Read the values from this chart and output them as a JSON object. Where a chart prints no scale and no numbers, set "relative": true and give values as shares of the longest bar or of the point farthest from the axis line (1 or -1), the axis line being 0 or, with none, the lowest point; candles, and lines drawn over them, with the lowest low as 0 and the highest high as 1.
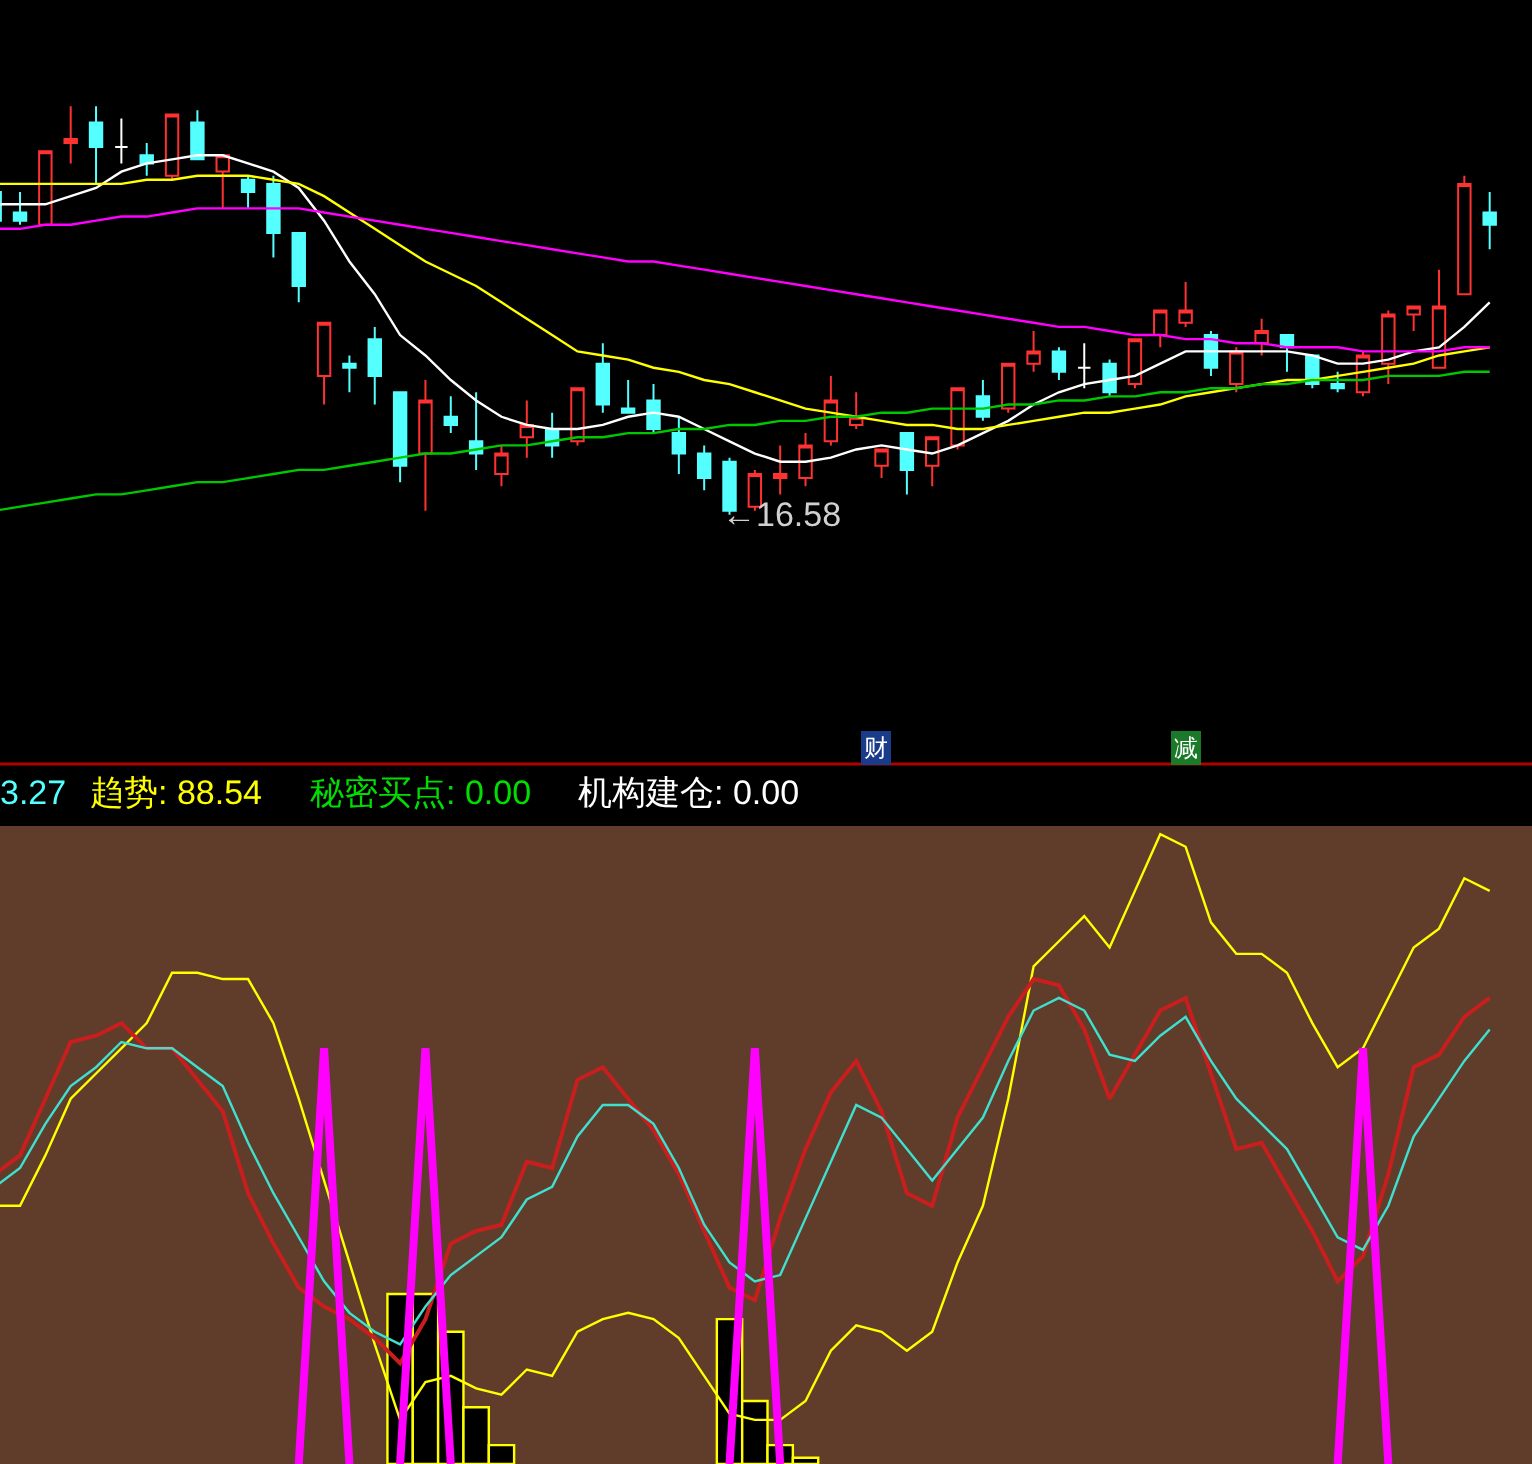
{
  "chart_data": [
    {
      "type": "candlestick",
      "relative": true,
      "tick_labels": false,
      "categories": [
        null,
        null,
        null,
        null,
        null,
        null,
        null,
        null,
        null,
        null,
        null,
        null,
        null,
        null,
        null,
        null,
        null,
        null,
        null,
        null,
        null,
        null,
        null,
        null,
        null,
        null,
        null,
        null,
        null,
        null,
        null,
        null,
        null,
        null,
        null,
        null,
        null,
        null,
        null,
        null,
        null,
        null,
        null,
        null,
        null,
        null,
        null,
        null,
        null,
        null,
        null,
        null,
        null,
        null,
        null,
        null,
        null,
        null,
        null,
        null
      ],
      "ohlc": [
        [
          0.79,
          0.8,
          0.71,
          0.72
        ],
        [
          0.74,
          0.79,
          0.71,
          0.72
        ],
        [
          0.71,
          0.89,
          0.71,
          0.89
        ],
        [
          0.91,
          1.0,
          0.86,
          0.92
        ],
        [
          0.96,
          1.0,
          0.81,
          0.9
        ],
        [
          0.9,
          0.97,
          0.86,
          0.9
        ],
        [
          0.88,
          0.91,
          0.83,
          0.86
        ],
        [
          0.83,
          0.98,
          0.82,
          0.98
        ],
        [
          0.96,
          0.99,
          0.87,
          0.87
        ],
        [
          0.84,
          0.88,
          0.75,
          0.88
        ],
        [
          0.82,
          0.83,
          0.75,
          0.79
        ],
        [
          0.81,
          0.83,
          0.63,
          0.69
        ],
        [
          0.69,
          0.69,
          0.52,
          0.56
        ],
        [
          0.34,
          0.47,
          0.27,
          0.47
        ],
        [
          0.37,
          0.39,
          0.3,
          0.36
        ],
        [
          0.43,
          0.46,
          0.27,
          0.34
        ],
        [
          0.3,
          0.3,
          0.08,
          0.12
        ],
        [
          0.15,
          0.33,
          0.01,
          0.28
        ],
        [
          0.24,
          0.29,
          0.2,
          0.22
        ],
        [
          0.18,
          0.3,
          0.11,
          0.15
        ],
        [
          0.1,
          0.17,
          0.07,
          0.15
        ],
        [
          0.19,
          0.28,
          0.14,
          0.22
        ],
        [
          0.21,
          0.25,
          0.14,
          0.17
        ],
        [
          0.18,
          0.31,
          0.17,
          0.31
        ],
        [
          0.37,
          0.42,
          0.25,
          0.27
        ],
        [
          0.26,
          0.33,
          0.25,
          0.25
        ],
        [
          0.28,
          0.32,
          0.2,
          0.21
        ],
        [
          0.2,
          0.24,
          0.1,
          0.15
        ],
        [
          0.15,
          0.17,
          0.06,
          0.09
        ],
        [
          0.13,
          0.14,
          0,
          0.01
        ],
        [
          0.02,
          0.11,
          0.01,
          0.1
        ],
        [
          0.09,
          0.17,
          0.05,
          0.1
        ],
        [
          0.09,
          0.2,
          0.07,
          0.17
        ],
        [
          0.18,
          0.34,
          0.17,
          0.28
        ],
        [
          0.22,
          0.3,
          0.21,
          0.24
        ],
        [
          0.12,
          0.16,
          0.09,
          0.16
        ],
        [
          0.2,
          0.2,
          0.05,
          0.11
        ],
        [
          0.12,
          0.19,
          0.07,
          0.19
        ],
        [
          0.17,
          0.31,
          0.16,
          0.31
        ],
        [
          0.29,
          0.33,
          0.23,
          0.24
        ],
        [
          0.26,
          0.37,
          0.25,
          0.37
        ],
        [
          0.37,
          0.45,
          0.35,
          0.4
        ],
        [
          0.4,
          0.41,
          0.33,
          0.35
        ],
        [
          0.36,
          0.42,
          0.31,
          0.36
        ],
        [
          0.37,
          0.38,
          0.29,
          0.3
        ],
        [
          0.32,
          0.43,
          0.31,
          0.43
        ],
        [
          0.44,
          0.5,
          0.41,
          0.5
        ],
        [
          0.47,
          0.57,
          0.46,
          0.5
        ],
        [
          0.44,
          0.45,
          0.34,
          0.36
        ],
        [
          0.32,
          0.41,
          0.3,
          0.4
        ],
        [
          0.42,
          0.48,
          0.39,
          0.45
        ],
        [
          0.44,
          0.44,
          0.35,
          0.41
        ],
        [
          0.39,
          0.39,
          0.31,
          0.32
        ],
        [
          0.32,
          0.35,
          0.3,
          0.31
        ],
        [
          0.3,
          0.4,
          0.29,
          0.39
        ],
        [
          0.37,
          0.5,
          0.32,
          0.49
        ],
        [
          0.49,
          0.51,
          0.45,
          0.51
        ],
        [
          0.36,
          0.6,
          0.36,
          0.51
        ],
        [
          0.54,
          0.83,
          0.54,
          0.81
        ],
        [
          0.74,
          0.79,
          0.65,
          0.71
        ]
      ],
      "colors": [
        "#54ffff",
        "#54ffff",
        "#ff3232",
        "#ff3232",
        "#54ffff",
        "#ffffff",
        "#54ffff",
        "#ff3232",
        "#54ffff",
        "#ff3232",
        "#54ffff",
        "#54ffff",
        "#54ffff",
        "#ff3232",
        "#54ffff",
        "#54ffff",
        "#54ffff",
        "#ff3232",
        "#54ffff",
        "#54ffff",
        "#ff3232",
        "#ff3232",
        "#54ffff",
        "#ff3232",
        "#54ffff",
        "#54ffff",
        "#54ffff",
        "#54ffff",
        "#54ffff",
        "#54ffff",
        "#ff3232",
        "#ff3232",
        "#ff3232",
        "#ff3232",
        "#ff3232",
        "#ff3232",
        "#54ffff",
        "#ff3232",
        "#ff3232",
        "#54ffff",
        "#ff3232",
        "#ff3232",
        "#54ffff",
        "#ffffff",
        "#54ffff",
        "#ff3232",
        "#ff3232",
        "#ff3232",
        "#54ffff",
        "#ff3232",
        "#ff3232",
        "#54ffff",
        "#54ffff",
        "#54ffff",
        "#ff3232",
        "#ff3232",
        "#ff3232",
        "#ff3232",
        "#ff3232",
        "#54ffff"
      ],
      "series": [
        {
          "type": "line",
          "color": "#ffffff",
          "values": [
            0.76,
            0.76,
            0.76,
            0.78,
            0.8,
            0.84,
            0.86,
            0.87,
            0.88,
            0.88,
            0.86,
            0.84,
            0.8,
            0.72,
            0.62,
            0.54,
            0.44,
            0.39,
            0.33,
            0.28,
            0.24,
            0.22,
            0.21,
            0.21,
            0.22,
            0.24,
            0.25,
            0.24,
            0.21,
            0.18,
            0.15,
            0.13,
            0.13,
            0.14,
            0.16,
            0.17,
            0.16,
            0.15,
            0.17,
            0.2,
            0.23,
            0.27,
            0.3,
            0.32,
            0.33,
            0.34,
            0.37,
            0.4,
            0.4,
            0.4,
            0.4,
            0.4,
            0.39,
            0.37,
            0.37,
            0.38,
            0.4,
            0.41,
            0.46,
            0.52
          ]
        },
        {
          "type": "line",
          "color": "#ffff00",
          "values": [
            0.81,
            0.81,
            0.81,
            0.81,
            0.81,
            0.81,
            0.82,
            0.82,
            0.83,
            0.83,
            0.83,
            0.82,
            0.81,
            0.78,
            0.74,
            0.7,
            0.66,
            0.62,
            0.59,
            0.56,
            0.52,
            0.48,
            0.44,
            0.4,
            0.39,
            0.38,
            0.36,
            0.35,
            0.33,
            0.32,
            0.3,
            0.28,
            0.26,
            0.25,
            0.24,
            0.23,
            0.22,
            0.22,
            0.21,
            0.21,
            0.22,
            0.23,
            0.24,
            0.25,
            0.25,
            0.26,
            0.27,
            0.29,
            0.3,
            0.31,
            0.32,
            0.33,
            0.33,
            0.34,
            0.35,
            0.36,
            0.37,
            0.39,
            0.4,
            0.41
          ]
        },
        {
          "type": "line",
          "color": "#ff00ff",
          "values": [
            0.7,
            0.7,
            0.71,
            0.71,
            0.72,
            0.73,
            0.73,
            0.74,
            0.75,
            0.75,
            0.75,
            0.75,
            0.75,
            0.74,
            0.73,
            0.72,
            0.71,
            0.7,
            0.69,
            0.68,
            0.67,
            0.66,
            0.65,
            0.64,
            0.63,
            0.62,
            0.62,
            0.61,
            0.6,
            0.59,
            0.58,
            0.57,
            0.56,
            0.55,
            0.54,
            0.53,
            0.52,
            0.51,
            0.5,
            0.49,
            0.48,
            0.47,
            0.46,
            0.46,
            0.45,
            0.44,
            0.44,
            0.43,
            0.43,
            0.42,
            0.42,
            0.41,
            0.41,
            0.41,
            0.4,
            0.4,
            0.4,
            0.4,
            0.41,
            0.41
          ]
        },
        {
          "type": "line",
          "color": "#00c800",
          "values": [
            0.01,
            0.02,
            0.03,
            0.04,
            0.05,
            0.05,
            0.06,
            0.07,
            0.08,
            0.08,
            0.09,
            0.1,
            0.11,
            0.11,
            0.12,
            0.13,
            0.14,
            0.15,
            0.15,
            0.16,
            0.17,
            0.17,
            0.18,
            0.19,
            0.19,
            0.2,
            0.2,
            0.21,
            0.21,
            0.22,
            0.22,
            0.23,
            0.23,
            0.24,
            0.24,
            0.25,
            0.25,
            0.26,
            0.26,
            0.26,
            0.27,
            0.27,
            0.28,
            0.28,
            0.29,
            0.29,
            0.3,
            0.3,
            0.31,
            0.31,
            0.32,
            0.32,
            0.33,
            0.33,
            0.33,
            0.34,
            0.34,
            0.34,
            0.35,
            0.35
          ]
        }
      ],
      "annotations": [
        "←16.58",
        "财",
        "减"
      ]
    },
    {
      "type": "line",
      "relative": true,
      "tick_labels": false,
      "categories": [
        null,
        null,
        null,
        null,
        null,
        null,
        null,
        null,
        null,
        null,
        null,
        null,
        null,
        null,
        null,
        null,
        null,
        null,
        null,
        null,
        null,
        null,
        null,
        null,
        null,
        null,
        null,
        null,
        null,
        null,
        null,
        null,
        null,
        null,
        null,
        null,
        null,
        null,
        null,
        null,
        null,
        null,
        null,
        null,
        null,
        null,
        null,
        null,
        null,
        null,
        null,
        null,
        null,
        null,
        null,
        null,
        null,
        null,
        null,
        null
      ],
      "series": [
        {
          "type": "line",
          "color": "#ffff00",
          "values": [
            0.41,
            0.41,
            0.49,
            0.58,
            0.62,
            0.66,
            0.7,
            0.78,
            0.78,
            0.77,
            0.77,
            0.7,
            0.58,
            0.45,
            0.32,
            0.19,
            0.07,
            0.13,
            0.14,
            0.12,
            0.11,
            0.15,
            0.14,
            0.21,
            0.23,
            0.24,
            0.23,
            0.2,
            0.14,
            0.08,
            0.07,
            0.07,
            0.1,
            0.18,
            0.22,
            0.21,
            0.18,
            0.21,
            0.32,
            0.41,
            0.58,
            0.79,
            0.83,
            0.87,
            0.82,
            0.91,
            1.0,
            0.98,
            0.86,
            0.81,
            0.81,
            0.78,
            0.7,
            0.63,
            0.66,
            0.74,
            0.82,
            0.85,
            0.93,
            0.91
          ]
        },
        {
          "type": "line",
          "color": "#c81e1e",
          "values": [
            0.46,
            0.49,
            0.58,
            0.67,
            0.68,
            0.7,
            0.66,
            0.66,
            0.61,
            0.56,
            0.43,
            0.35,
            0.28,
            0.25,
            0.23,
            0.2,
            0.16,
            0.23,
            0.35,
            0.37,
            0.38,
            0.48,
            0.47,
            0.61,
            0.63,
            0.58,
            0.53,
            0.46,
            0.37,
            0.28,
            0.26,
            0.39,
            0.5,
            0.59,
            0.64,
            0.56,
            0.43,
            0.41,
            0.55,
            0.63,
            0.71,
            0.77,
            0.76,
            0.69,
            0.58,
            0.65,
            0.72,
            0.74,
            0.62,
            0.5,
            0.51,
            0.44,
            0.37,
            0.29,
            0.33,
            0.46,
            0.63,
            0.65,
            0.71,
            0.74
          ]
        },
        {
          "type": "line",
          "color": "#40e0d0",
          "values": [
            0.44,
            0.47,
            0.54,
            0.6,
            0.63,
            0.67,
            0.66,
            0.66,
            0.63,
            0.6,
            0.51,
            0.43,
            0.36,
            0.29,
            0.24,
            0.21,
            0.19,
            0.25,
            0.3,
            0.33,
            0.36,
            0.42,
            0.44,
            0.52,
            0.57,
            0.57,
            0.54,
            0.47,
            0.38,
            0.32,
            0.29,
            0.3,
            0.39,
            0.48,
            0.57,
            0.55,
            0.5,
            0.45,
            0.5,
            0.55,
            0.64,
            0.72,
            0.74,
            0.72,
            0.65,
            0.64,
            0.68,
            0.71,
            0.64,
            0.58,
            0.54,
            0.5,
            0.43,
            0.36,
            0.34,
            0.41,
            0.52,
            0.58,
            0.64,
            0.69
          ]
        },
        {
          "type": "line",
          "color": "#ff00ff",
          "values": [
            null,
            null,
            null,
            null,
            null,
            null,
            null,
            null,
            null,
            null,
            null,
            null,
            0,
            0.66,
            0,
            null,
            0,
            0.66,
            0,
            null,
            null,
            null,
            null,
            null,
            null,
            null,
            null,
            null,
            null,
            0,
            0.66,
            0,
            null,
            null,
            null,
            null,
            null,
            null,
            null,
            null,
            null,
            null,
            null,
            null,
            null,
            null,
            null,
            null,
            null,
            null,
            null,
            null,
            null,
            0,
            0.66,
            0,
            null,
            null,
            null,
            null
          ]
        },
        {
          "type": "bar",
          "color": "#000000",
          "values": [
            null,
            null,
            null,
            null,
            null,
            null,
            null,
            null,
            null,
            null,
            null,
            null,
            null,
            null,
            null,
            null,
            0.27,
            0.27,
            0.21,
            0.09,
            0.03,
            null,
            null,
            null,
            null,
            null,
            null,
            null,
            null,
            0.23,
            0.1,
            0.03,
            0.01,
            null,
            null,
            null,
            null,
            null,
            null,
            null,
            null,
            null,
            null,
            null,
            null,
            null,
            null,
            null,
            null,
            null,
            null,
            null,
            null,
            null,
            null,
            null,
            null,
            null,
            null,
            null
          ]
        }
      ],
      "annotations": [
        "3.27",
        "趋势: 88.54",
        "秘密买点: 0.00",
        "机构建仓: 0.00"
      ]
    }
  ]
}
